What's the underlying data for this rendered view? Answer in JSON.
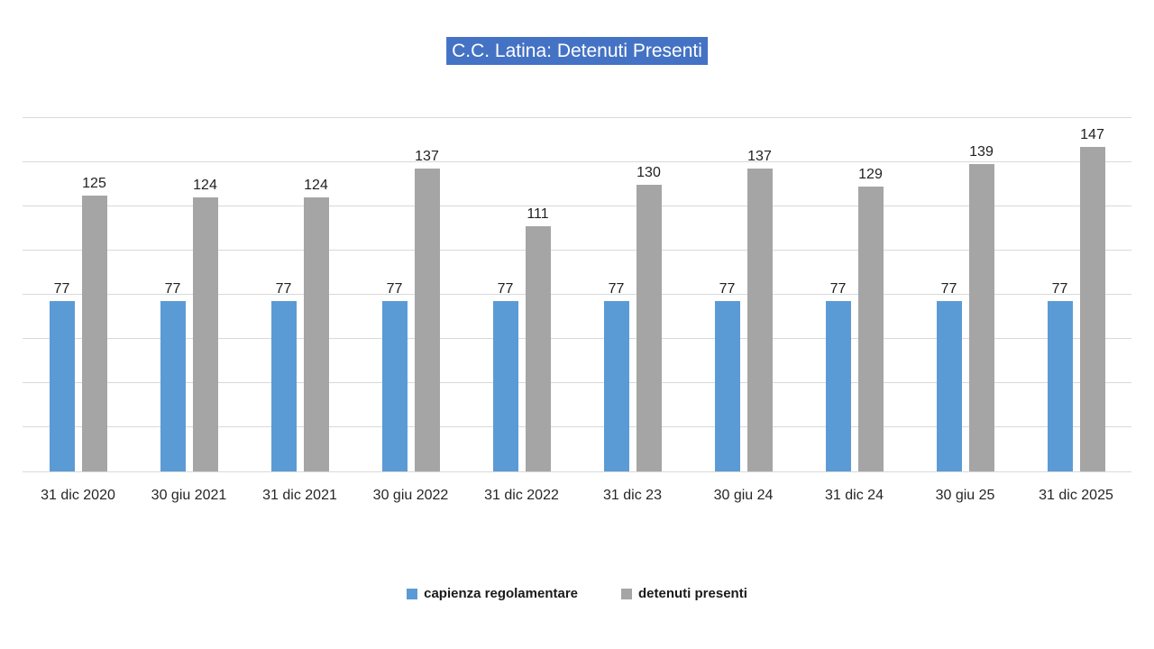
{
  "title": {
    "text": "C.C. Latina: Detenuti Presenti",
    "highlight_color": "#4472C4",
    "text_color": "#FFFFFF"
  },
  "chart_data": {
    "type": "bar",
    "title": "C.C. Latina: Detenuti Presenti",
    "categories": [
      "31 dic 2020",
      "30 giu 2021",
      "31 dic 2021",
      "30 giu 2022",
      "31 dic 2022",
      "31 dic 23",
      "30 giu 24",
      "31 dic 24",
      "30 giu 25",
      "31 dic 2025"
    ],
    "series": [
      {
        "name": "capienza regolamentare",
        "color": "#5B9BD5",
        "values": [
          77,
          77,
          77,
          77,
          77,
          77,
          77,
          77,
          77,
          77
        ]
      },
      {
        "name": "detenuti presenti",
        "color": "#A5A5A5",
        "values": [
          125,
          124,
          124,
          137,
          111,
          130,
          137,
          129,
          139,
          147
        ]
      }
    ],
    "xlabel": "",
    "ylabel": "",
    "ylim": [
      0,
      160
    ],
    "gridline_interval": 20,
    "grid": true,
    "data_labels": true,
    "legend_position": "bottom"
  },
  "legend": {
    "items": [
      {
        "label": "capienza regolamentare",
        "color": "#5B9BD5"
      },
      {
        "label": "detenuti presenti",
        "color": "#A5A5A5"
      }
    ]
  },
  "colors": {
    "gridline": "#D9D9D9",
    "axis_line": "#D9D9D9",
    "data_label": "#1F1F1F",
    "axis_label": "#262626",
    "background": "#FFFFFF"
  }
}
